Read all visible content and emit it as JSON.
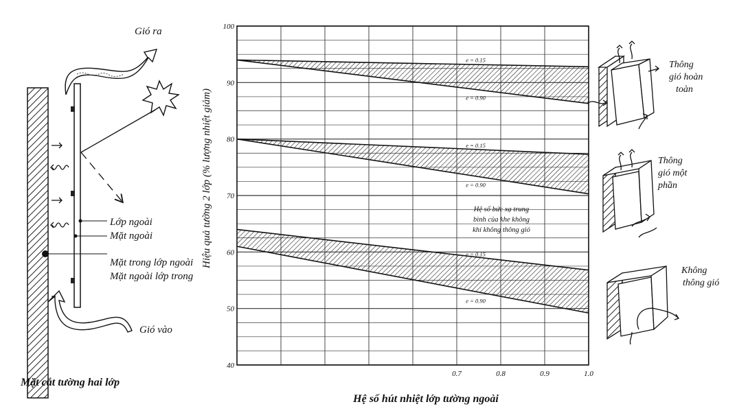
{
  "section_title": "Mặt cắt tường hai lớp",
  "left_diagram": {
    "wind_out": "Gió ra",
    "wind_in": "Gió vào",
    "outer_layer": "Lớp ngoài",
    "outer_surface": "Mặt ngoài",
    "inner_surface_outer_layer": "Mặt trong lớp ngoài",
    "outer_surface_inner_layer": "Mặt ngoài lớp trong"
  },
  "right_icons": {
    "full_ventilation": [
      "Thông",
      "gió hoàn",
      "toàn"
    ],
    "partial_ventilation": [
      "Thông",
      "gió một",
      "phần"
    ],
    "no_ventilation": [
      "Không",
      "thông gió"
    ]
  },
  "chart_data": {
    "type": "area",
    "xlabel": "Hệ số hút nhiệt lớp tường ngoài",
    "ylabel": "Hiệu quả tường 2 lớp (% lượng nhiệt giảm)",
    "xlim": [
      0.2,
      1.0
    ],
    "ylim": [
      40,
      100
    ],
    "x_ticks": [
      "0.7",
      "0.8",
      "0.9",
      "1.0"
    ],
    "y_ticks": [
      "40",
      "50",
      "60",
      "70",
      "80",
      "90",
      "100"
    ],
    "grid": true,
    "annotation": [
      "Hệ số bức xạ trung",
      "bình của khe không",
      "khí không thông gió"
    ],
    "series": [
      {
        "name": "e = 0.15",
        "group": "full_ventilation",
        "x": [
          0.2,
          1.0
        ],
        "y": [
          94,
          92.8
        ]
      },
      {
        "name": "e = 0.90",
        "group": "full_ventilation",
        "x": [
          0.2,
          1.0
        ],
        "y": [
          94,
          86.3
        ]
      },
      {
        "name": "e = 0.15",
        "group": "partial_ventilation",
        "x": [
          0.2,
          1.0
        ],
        "y": [
          80,
          77.3
        ]
      },
      {
        "name": "e = 0.90",
        "group": "partial_ventilation",
        "x": [
          0.2,
          1.0
        ],
        "y": [
          80,
          70.3
        ]
      },
      {
        "name": "e = 0.15",
        "group": "no_ventilation",
        "x": [
          0.2,
          1.0
        ],
        "y": [
          64,
          56.8
        ]
      },
      {
        "name": "e = 0.90",
        "group": "no_ventilation",
        "x": [
          0.2,
          1.0
        ],
        "y": [
          61,
          49.2
        ]
      }
    ]
  }
}
